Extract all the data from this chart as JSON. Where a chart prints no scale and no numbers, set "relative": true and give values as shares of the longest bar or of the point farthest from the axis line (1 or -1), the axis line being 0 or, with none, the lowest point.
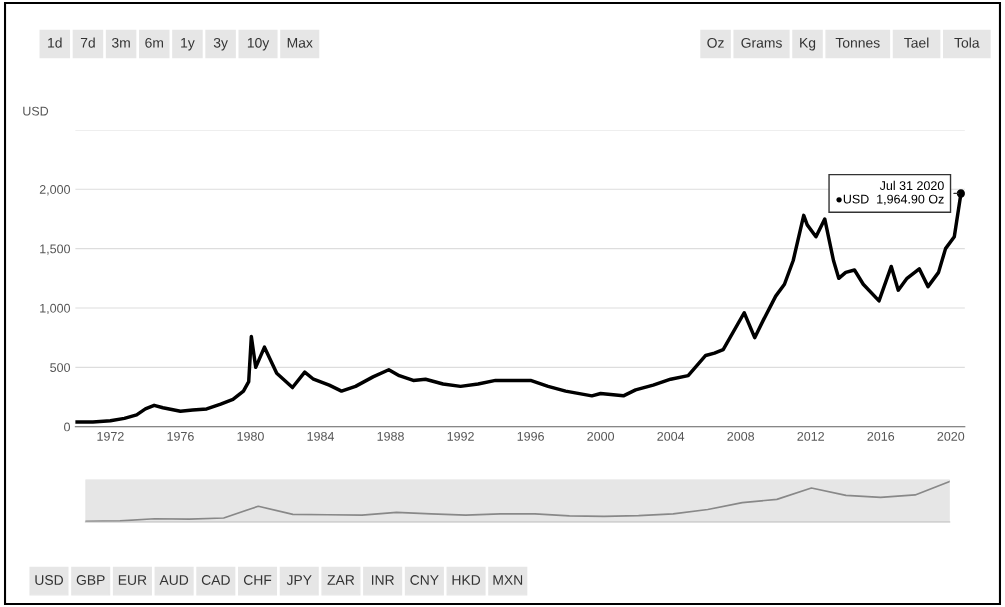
{
  "chart_data": [
    {
      "type": "line",
      "ylabel": "USD",
      "grid": "y",
      "marker": "none",
      "line_style": "solid",
      "xlim": [
        1970,
        2020.8
      ],
      "ylim": [
        0,
        2500
      ],
      "xticks": [
        1972,
        1976,
        1980,
        1984,
        1988,
        1992,
        1996,
        2000,
        2004,
        2008,
        2012,
        2016,
        2020
      ],
      "yticks": [
        0,
        500,
        {
          "value": 1000,
          "label": "1,000"
        },
        {
          "value": 1500,
          "label": "1,500"
        },
        {
          "value": 2000,
          "label": "2,000"
        },
        {
          "value": 2500,
          "label": null
        }
      ],
      "annotations": [
        {
          "text": "Jul 31 2020\n●USD  1,964.90 Oz",
          "x": 2020.58,
          "y": 1964.9
        }
      ],
      "series": [
        {
          "color": "#000000",
          "x": [
            1970.0,
            1971.0,
            1972.0,
            1972.8,
            1973.5,
            1974.0,
            1974.5,
            1975.0,
            1976.0,
            1976.7,
            1977.5,
            1978.3,
            1979.0,
            1979.6,
            1979.9,
            1980.05,
            1980.3,
            1980.8,
            1981.5,
            1982.4,
            1983.1,
            1983.6,
            1984.5,
            1985.2,
            1986.0,
            1987.0,
            1987.9,
            1988.5,
            1989.3,
            1990.0,
            1991.0,
            1992.0,
            1993.0,
            1994.0,
            1995.0,
            1996.0,
            1997.0,
            1998.0,
            1999.5,
            2000.0,
            2001.3,
            2002.0,
            2003.0,
            2004.0,
            2005.0,
            2006.0,
            2006.5,
            2007.0,
            2008.2,
            2008.8,
            2009.3,
            2010.0,
            2010.5,
            2011.0,
            2011.6,
            2011.8,
            2012.3,
            2012.8,
            2013.3,
            2013.6,
            2014.0,
            2014.5,
            2015.0,
            2015.9,
            2016.6,
            2017.0,
            2017.5,
            2018.2,
            2018.7,
            2019.3,
            2019.7,
            2020.2,
            2020.58
          ],
          "values": [
            40,
            40,
            50,
            70,
            100,
            150,
            180,
            160,
            130,
            140,
            150,
            190,
            230,
            300,
            380,
            760,
            500,
            670,
            450,
            330,
            460,
            400,
            350,
            300,
            340,
            420,
            480,
            430,
            390,
            400,
            360,
            340,
            360,
            390,
            390,
            390,
            340,
            300,
            260,
            280,
            260,
            310,
            350,
            400,
            430,
            600,
            620,
            650,
            960,
            750,
            900,
            1100,
            1200,
            1400,
            1780,
            1700,
            1600,
            1750,
            1400,
            1250,
            1300,
            1320,
            1200,
            1060,
            1350,
            1150,
            1250,
            1330,
            1180,
            1300,
            1500,
            1600,
            1964.9
          ]
        }
      ]
    },
    {
      "type": "line",
      "relative": true,
      "series": [
        {
          "color": "#888888",
          "values": [
            0.02,
            0.03,
            0.08,
            0.07,
            0.1,
            0.39,
            0.19,
            0.18,
            0.17,
            0.24,
            0.2,
            0.17,
            0.2,
            0.2,
            0.15,
            0.14,
            0.16,
            0.2,
            0.31,
            0.48,
            0.56,
            0.84,
            0.66,
            0.61,
            0.67,
            1
          ]
        }
      ],
      "categories": [
        null,
        null,
        null,
        null,
        null,
        null,
        null,
        null,
        null,
        null,
        null,
        null,
        null,
        null,
        null,
        null,
        null,
        null,
        null,
        null,
        null,
        null,
        null,
        null,
        null,
        null
      ]
    },
    {
      "type": "other",
      "annotations": [
        "1d",
        "7d",
        "3m",
        "6m",
        "1y",
        "3y",
        "10y",
        "Max"
      ]
    },
    {
      "type": "other",
      "annotations": [
        "Oz",
        "Grams",
        "Kg",
        "Tonnes",
        "Tael",
        "Tola"
      ]
    },
    {
      "type": "other",
      "annotations": [
        "USD",
        "GBP",
        "EUR",
        "AUD",
        "CAD",
        "CHF",
        "JPY",
        "ZAR",
        "INR",
        "CNY",
        "HKD",
        "MXN"
      ]
    }
  ]
}
